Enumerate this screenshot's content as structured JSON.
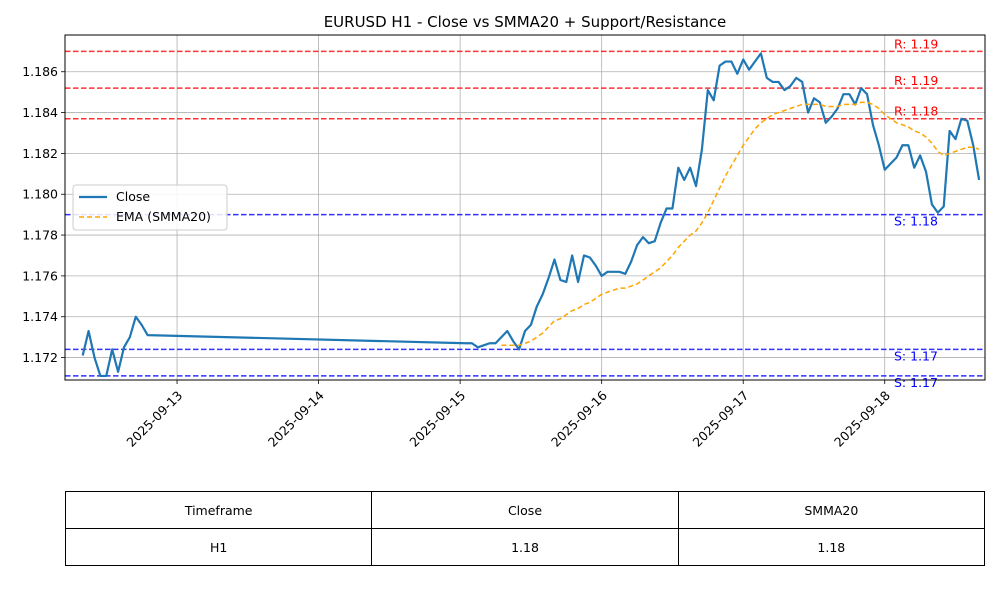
{
  "chart_data": {
    "type": "line",
    "title": "EURUSD H1 - Close vs SMMA20 + Support/Resistance",
    "xlabel": "",
    "ylabel": "",
    "x_range": [
      "2025-09-12 05:00",
      "2025-09-18 17:00"
    ],
    "ylim": [
      1.1709,
      1.1878
    ],
    "yticks": [
      1.172,
      1.174,
      1.176,
      1.178,
      1.18,
      1.182,
      1.184,
      1.186
    ],
    "ytick_labels": [
      "1.172",
      "1.174",
      "1.176",
      "1.178",
      "1.180",
      "1.182",
      "1.184",
      "1.186"
    ],
    "xticks": [
      "2025-09-13",
      "2025-09-14",
      "2025-09-15",
      "2025-09-16",
      "2025-09-17",
      "2025-09-18"
    ],
    "grid": true,
    "legend": {
      "position": "center-left",
      "entries": [
        "Close",
        "EMA (SMMA20)"
      ]
    },
    "series": [
      {
        "name": "Close",
        "color": "#1f77b4",
        "style": "solid",
        "points": [
          [
            "2025-09-12 08:00",
            1.1721
          ],
          [
            "2025-09-12 09:00",
            1.1733
          ],
          [
            "2025-09-12 10:00",
            1.172
          ],
          [
            "2025-09-12 11:00",
            1.1711
          ],
          [
            "2025-09-12 12:00",
            1.1711
          ],
          [
            "2025-09-12 13:00",
            1.1724
          ],
          [
            "2025-09-12 14:00",
            1.1713
          ],
          [
            "2025-09-12 15:00",
            1.1725
          ],
          [
            "2025-09-12 16:00",
            1.173
          ],
          [
            "2025-09-12 17:00",
            1.174
          ],
          [
            "2025-09-12 18:00",
            1.1736
          ],
          [
            "2025-09-12 19:00",
            1.1731
          ],
          [
            "2025-09-15 01:00",
            1.1727
          ],
          [
            "2025-09-15 02:00",
            1.1727
          ],
          [
            "2025-09-15 03:00",
            1.1725
          ],
          [
            "2025-09-15 04:00",
            1.1726
          ],
          [
            "2025-09-15 05:00",
            1.1727
          ],
          [
            "2025-09-15 06:00",
            1.1727
          ],
          [
            "2025-09-15 07:00",
            1.173
          ],
          [
            "2025-09-15 08:00",
            1.1733
          ],
          [
            "2025-09-15 09:00",
            1.1728
          ],
          [
            "2025-09-15 10:00",
            1.1724
          ],
          [
            "2025-09-15 11:00",
            1.1733
          ],
          [
            "2025-09-15 12:00",
            1.1736
          ],
          [
            "2025-09-15 13:00",
            1.1745
          ],
          [
            "2025-09-15 14:00",
            1.1751
          ],
          [
            "2025-09-15 15:00",
            1.1759
          ],
          [
            "2025-09-15 16:00",
            1.1768
          ],
          [
            "2025-09-15 17:00",
            1.1758
          ],
          [
            "2025-09-15 18:00",
            1.1757
          ],
          [
            "2025-09-15 19:00",
            1.177
          ],
          [
            "2025-09-15 20:00",
            1.1757
          ],
          [
            "2025-09-15 21:00",
            1.177
          ],
          [
            "2025-09-15 22:00",
            1.1769
          ],
          [
            "2025-09-15 23:00",
            1.1765
          ],
          [
            "2025-09-16 00:00",
            1.176
          ],
          [
            "2025-09-16 01:00",
            1.1762
          ],
          [
            "2025-09-16 02:00",
            1.1762
          ],
          [
            "2025-09-16 03:00",
            1.1762
          ],
          [
            "2025-09-16 04:00",
            1.1761
          ],
          [
            "2025-09-16 05:00",
            1.1767
          ],
          [
            "2025-09-16 06:00",
            1.1775
          ],
          [
            "2025-09-16 07:00",
            1.1779
          ],
          [
            "2025-09-16 08:00",
            1.1776
          ],
          [
            "2025-09-16 09:00",
            1.1777
          ],
          [
            "2025-09-16 10:00",
            1.1786
          ],
          [
            "2025-09-16 11:00",
            1.1793
          ],
          [
            "2025-09-16 12:00",
            1.1793
          ],
          [
            "2025-09-16 13:00",
            1.1813
          ],
          [
            "2025-09-16 14:00",
            1.1807
          ],
          [
            "2025-09-16 15:00",
            1.1813
          ],
          [
            "2025-09-16 16:00",
            1.1804
          ],
          [
            "2025-09-16 17:00",
            1.1822
          ],
          [
            "2025-09-16 18:00",
            1.1851
          ],
          [
            "2025-09-16 19:00",
            1.1846
          ],
          [
            "2025-09-16 20:00",
            1.1863
          ],
          [
            "2025-09-16 21:00",
            1.1865
          ],
          [
            "2025-09-16 22:00",
            1.1865
          ],
          [
            "2025-09-16 23:00",
            1.1859
          ],
          [
            "2025-09-17 00:00",
            1.1866
          ],
          [
            "2025-09-17 01:00",
            1.1861
          ],
          [
            "2025-09-17 02:00",
            1.1865
          ],
          [
            "2025-09-17 03:00",
            1.1869
          ],
          [
            "2025-09-17 04:00",
            1.1857
          ],
          [
            "2025-09-17 05:00",
            1.1855
          ],
          [
            "2025-09-17 06:00",
            1.1855
          ],
          [
            "2025-09-17 07:00",
            1.1851
          ],
          [
            "2025-09-17 08:00",
            1.1853
          ],
          [
            "2025-09-17 09:00",
            1.1857
          ],
          [
            "2025-09-17 10:00",
            1.1855
          ],
          [
            "2025-09-17 11:00",
            1.184
          ],
          [
            "2025-09-17 12:00",
            1.1847
          ],
          [
            "2025-09-17 13:00",
            1.1845
          ],
          [
            "2025-09-17 14:00",
            1.1835
          ],
          [
            "2025-09-17 15:00",
            1.1838
          ],
          [
            "2025-09-17 16:00",
            1.1842
          ],
          [
            "2025-09-17 17:00",
            1.1849
          ],
          [
            "2025-09-17 18:00",
            1.1849
          ],
          [
            "2025-09-17 19:00",
            1.1844
          ],
          [
            "2025-09-17 20:00",
            1.1852
          ],
          [
            "2025-09-17 21:00",
            1.1849
          ],
          [
            "2025-09-17 22:00",
            1.1834
          ],
          [
            "2025-09-17 23:00",
            1.1824
          ],
          [
            "2025-09-18 00:00",
            1.1812
          ],
          [
            "2025-09-18 01:00",
            1.1815
          ],
          [
            "2025-09-18 02:00",
            1.1818
          ],
          [
            "2025-09-18 03:00",
            1.1824
          ],
          [
            "2025-09-18 04:00",
            1.1824
          ],
          [
            "2025-09-18 05:00",
            1.1813
          ],
          [
            "2025-09-18 06:00",
            1.1819
          ],
          [
            "2025-09-18 07:00",
            1.1811
          ],
          [
            "2025-09-18 08:00",
            1.1795
          ],
          [
            "2025-09-18 09:00",
            1.1791
          ],
          [
            "2025-09-18 10:00",
            1.1794
          ],
          [
            "2025-09-18 11:00",
            1.1831
          ],
          [
            "2025-09-18 12:00",
            1.1827
          ],
          [
            "2025-09-18 13:00",
            1.1837
          ],
          [
            "2025-09-18 14:00",
            1.1836
          ],
          [
            "2025-09-18 15:00",
            1.1824
          ],
          [
            "2025-09-18 16:00",
            1.1807
          ]
        ]
      },
      {
        "name": "EMA (SMMA20)",
        "color": "#ffa500",
        "style": "dashed",
        "points": [
          [
            "2025-09-15 07:00",
            1.1726
          ],
          [
            "2025-09-15 08:00",
            1.1726
          ],
          [
            "2025-09-15 09:00",
            1.1726
          ],
          [
            "2025-09-15 10:00",
            1.1726
          ],
          [
            "2025-09-15 11:00",
            1.1727
          ],
          [
            "2025-09-15 12:00",
            1.1728
          ],
          [
            "2025-09-15 13:00",
            1.173
          ],
          [
            "2025-09-15 14:00",
            1.1732
          ],
          [
            "2025-09-15 15:00",
            1.1735
          ],
          [
            "2025-09-15 16:00",
            1.1738
          ],
          [
            "2025-09-15 17:00",
            1.1739
          ],
          [
            "2025-09-15 18:00",
            1.1741
          ],
          [
            "2025-09-15 19:00",
            1.1743
          ],
          [
            "2025-09-15 20:00",
            1.1744
          ],
          [
            "2025-09-15 21:00",
            1.1746
          ],
          [
            "2025-09-15 22:00",
            1.1747
          ],
          [
            "2025-09-15 23:00",
            1.1749
          ],
          [
            "2025-09-16 00:00",
            1.1751
          ],
          [
            "2025-09-16 01:00",
            1.1752
          ],
          [
            "2025-09-16 02:00",
            1.1753
          ],
          [
            "2025-09-16 03:00",
            1.1754
          ],
          [
            "2025-09-16 04:00",
            1.1754
          ],
          [
            "2025-09-16 05:00",
            1.1755
          ],
          [
            "2025-09-16 06:00",
            1.1756
          ],
          [
            "2025-09-16 07:00",
            1.1758
          ],
          [
            "2025-09-16 08:00",
            1.176
          ],
          [
            "2025-09-16 09:00",
            1.1762
          ],
          [
            "2025-09-16 10:00",
            1.1764
          ],
          [
            "2025-09-16 11:00",
            1.1767
          ],
          [
            "2025-09-16 12:00",
            1.177
          ],
          [
            "2025-09-16 13:00",
            1.1774
          ],
          [
            "2025-09-16 14:00",
            1.1777
          ],
          [
            "2025-09-16 15:00",
            1.178
          ],
          [
            "2025-09-16 16:00",
            1.1782
          ],
          [
            "2025-09-16 17:00",
            1.1786
          ],
          [
            "2025-09-16 18:00",
            1.1791
          ],
          [
            "2025-09-16 19:00",
            1.1797
          ],
          [
            "2025-09-16 20:00",
            1.1803
          ],
          [
            "2025-09-16 21:00",
            1.1809
          ],
          [
            "2025-09-16 22:00",
            1.1814
          ],
          [
            "2025-09-16 23:00",
            1.1819
          ],
          [
            "2025-09-17 00:00",
            1.1824
          ],
          [
            "2025-09-17 01:00",
            1.1828
          ],
          [
            "2025-09-17 02:00",
            1.1832
          ],
          [
            "2025-09-17 03:00",
            1.1835
          ],
          [
            "2025-09-17 04:00",
            1.1837
          ],
          [
            "2025-09-17 05:00",
            1.1839
          ],
          [
            "2025-09-17 06:00",
            1.184
          ],
          [
            "2025-09-17 07:00",
            1.1841
          ],
          [
            "2025-09-17 08:00",
            1.1842
          ],
          [
            "2025-09-17 09:00",
            1.1843
          ],
          [
            "2025-09-17 10:00",
            1.1844
          ],
          [
            "2025-09-17 11:00",
            1.1844
          ],
          [
            "2025-09-17 12:00",
            1.1844
          ],
          [
            "2025-09-17 13:00",
            1.1844
          ],
          [
            "2025-09-17 14:00",
            1.1843
          ],
          [
            "2025-09-17 15:00",
            1.1843
          ],
          [
            "2025-09-17 16:00",
            1.1843
          ],
          [
            "2025-09-17 17:00",
            1.1844
          ],
          [
            "2025-09-17 18:00",
            1.1844
          ],
          [
            "2025-09-17 19:00",
            1.1844
          ],
          [
            "2025-09-17 20:00",
            1.1845
          ],
          [
            "2025-09-17 21:00",
            1.1845
          ],
          [
            "2025-09-17 22:00",
            1.1844
          ],
          [
            "2025-09-17 23:00",
            1.1842
          ],
          [
            "2025-09-18 00:00",
            1.1839
          ],
          [
            "2025-09-18 01:00",
            1.1837
          ],
          [
            "2025-09-18 02:00",
            1.1835
          ],
          [
            "2025-09-18 03:00",
            1.1834
          ],
          [
            "2025-09-18 04:00",
            1.1833
          ],
          [
            "2025-09-18 05:00",
            1.1831
          ],
          [
            "2025-09-18 06:00",
            1.183
          ],
          [
            "2025-09-18 07:00",
            1.1828
          ],
          [
            "2025-09-18 08:00",
            1.1825
          ],
          [
            "2025-09-18 09:00",
            1.1821
          ],
          [
            "2025-09-18 10:00",
            1.1819
          ],
          [
            "2025-09-18 11:00",
            1.182
          ],
          [
            "2025-09-18 12:00",
            1.1821
          ],
          [
            "2025-09-18 13:00",
            1.1822
          ],
          [
            "2025-09-18 14:00",
            1.1823
          ],
          [
            "2025-09-18 15:00",
            1.1823
          ],
          [
            "2025-09-18 16:00",
            1.1822
          ]
        ]
      }
    ],
    "levels": [
      {
        "kind": "resistance",
        "value": 1.187,
        "label": "R: 1.19",
        "color": "#ff0000"
      },
      {
        "kind": "resistance",
        "value": 1.1852,
        "label": "R: 1.19",
        "color": "#ff0000"
      },
      {
        "kind": "resistance",
        "value": 1.1837,
        "label": "R: 1.18",
        "color": "#ff0000"
      },
      {
        "kind": "support",
        "value": 1.179,
        "label": "S: 1.18",
        "color": "#0000ff"
      },
      {
        "kind": "support",
        "value": 1.1724,
        "label": "S: 1.17",
        "color": "#0000ff"
      },
      {
        "kind": "support",
        "value": 1.1711,
        "label": "S: 1.17",
        "color": "#0000ff"
      }
    ]
  },
  "table": {
    "headers": [
      "Timeframe",
      "Close",
      "SMMA20"
    ],
    "rows": [
      [
        "H1",
        "1.18",
        "1.18"
      ]
    ]
  }
}
